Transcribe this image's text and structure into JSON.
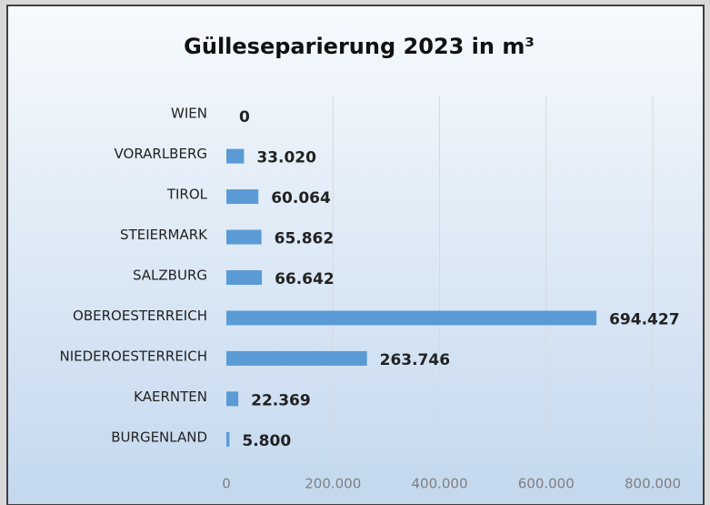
{
  "chart_data": {
    "type": "bar",
    "orientation": "horizontal",
    "title": "Gülleseparierung 2023 in m³",
    "categories": [
      "WIEN",
      "VORARLBERG",
      "TIROL",
      "STEIERMARK",
      "SALZBURG",
      "OBEROESTERREICH",
      "NIEDEROESTERREICH",
      "KAERNTEN",
      "BURGENLAND"
    ],
    "values": [
      0,
      33020,
      60064,
      65862,
      66642,
      694427,
      263746,
      22369,
      5800
    ],
    "value_labels": [
      "0",
      "33.020",
      "60.064",
      "65.862",
      "66.642",
      "694.427",
      "263.746",
      "22.369",
      "5.800"
    ],
    "color": "#5b9bd5",
    "xlim": [
      0,
      800000
    ],
    "xticks": [
      0,
      {
        "value": 200000,
        "label": "200.000"
      },
      {
        "value": 400000,
        "label": "400.000"
      },
      {
        "value": 600000,
        "label": "600.000"
      },
      {
        "value": 800000,
        "label": "800.000"
      }
    ],
    "grid": true
  }
}
